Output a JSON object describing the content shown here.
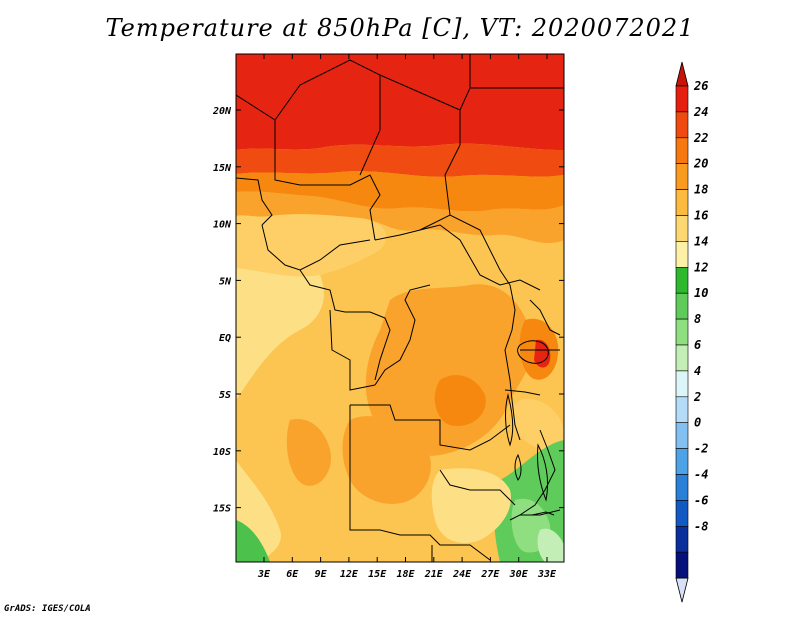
{
  "title": "Temperature at 850hPa [C], VT: 2020072021",
  "credit": "GrADS: IGES/COLA",
  "map": {
    "lat_ticks": [
      "20N",
      "15N",
      "10N",
      "5N",
      "EQ",
      "5S",
      "10S",
      "15S"
    ],
    "lon_ticks": [
      "3E",
      "6E",
      "9E",
      "12E",
      "15E",
      "18E",
      "21E",
      "24E",
      "27E",
      "30E",
      "33E"
    ]
  },
  "colorbar": {
    "labels": [
      "26",
      "24",
      "22",
      "20",
      "18",
      "16",
      "14",
      "12",
      "10",
      "8",
      "6",
      "4",
      "2",
      "0",
      "-2",
      "-4",
      "-6",
      "-8"
    ],
    "colors": [
      "#e61e10",
      "#f04a10",
      "#f6780f",
      "#f99b1e",
      "#fcbb3e",
      "#fdd870",
      "#fef0a6",
      "#2eb82e",
      "#5ecb5a",
      "#8fde80",
      "#c3efb6",
      "#dcf5f8",
      "#b4dcf8",
      "#82c0f2",
      "#4ea2e6",
      "#2a7fd8",
      "#1259c4",
      "#0a2f9c",
      "#06107a"
    ],
    "top_cap_color": "#c81408",
    "bottom_cap_color": "#d8e0f8"
  }
}
